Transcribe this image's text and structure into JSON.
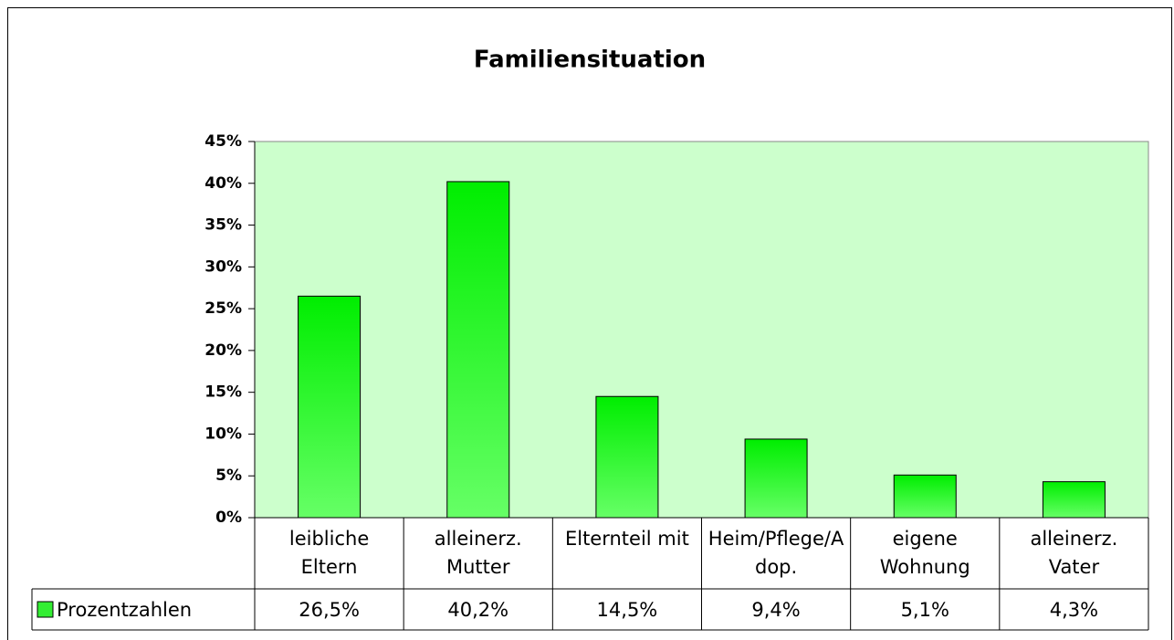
{
  "chart_data": {
    "type": "bar",
    "title": "Familiensituation",
    "categories": [
      "leibliche Eltern",
      "alleinerz. Mutter",
      "Elternteil mit",
      "Heim/Pflege/Adop.",
      "eigene Wohnung",
      "alleinerz. Vater"
    ],
    "series": [
      {
        "name": "Prozentzahlen",
        "color": "#22ee22",
        "values": [
          26.5,
          40.2,
          14.5,
          9.4,
          5.1,
          4.3
        ],
        "value_labels": [
          "26,5%",
          "40,2%",
          "14,5%",
          "9,4%",
          "5,1%",
          "4,3%"
        ]
      }
    ],
    "ylim": [
      0,
      45
    ],
    "yticks": [
      {
        "value": 0,
        "label": "0%"
      },
      {
        "value": 5,
        "label": "5%"
      },
      {
        "value": 10,
        "label": "10%"
      },
      {
        "value": 15,
        "label": "15%"
      },
      {
        "value": 20,
        "label": "20%"
      },
      {
        "value": 25,
        "label": "25%"
      },
      {
        "value": 30,
        "label": "30%"
      },
      {
        "value": 35,
        "label": "35%"
      },
      {
        "value": 40,
        "label": "40%"
      },
      {
        "value": 45,
        "label": "45%"
      }
    ],
    "grid": false
  }
}
